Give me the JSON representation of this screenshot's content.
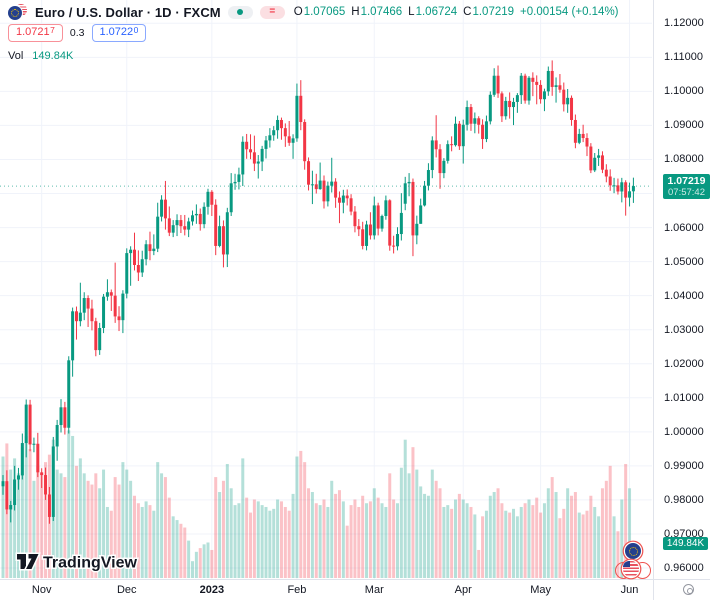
{
  "header": {
    "title": "Euro / U.S. Dollar · 1D · FXCM",
    "ohlc": {
      "o_label": "O",
      "o_value": "1.07065",
      "h_label": "H",
      "h_value": "1.07466",
      "l_label": "L",
      "l_value": "1.06724",
      "c_label": "C",
      "c_value": "1.07219",
      "change": "+0.00154 (+0.14%)"
    },
    "bid": {
      "main": "1.0721",
      "sup": "7"
    },
    "spread": "0.3",
    "ask": {
      "main": "1.0722",
      "sup": "0"
    },
    "vol_label": "Vol",
    "vol_value": "149.84K"
  },
  "icons": {
    "pair": "eu-us-flag-pair",
    "market_status": "green-dot",
    "delayed_badge": "=",
    "corner_button": "target-circle",
    "event_markers": [
      "eu-flag",
      "us-flag"
    ]
  },
  "watermark": {
    "logo_text": "TradingView",
    "logo_mark": "17"
  },
  "price_scale": {
    "ticks": [
      "1.12000",
      "1.11000",
      "1.10000",
      "1.09000",
      "1.08000",
      "1.07000",
      "1.06000",
      "1.05000",
      "1.04000",
      "1.03000",
      "1.02000",
      "1.01000",
      "1.00000",
      "0.99000",
      "0.98000",
      "0.97000",
      "0.96000"
    ]
  },
  "last_price_label": {
    "price": "1.07219",
    "countdown": "07:57:42"
  },
  "last_volume_label": "149.84K",
  "colors": {
    "up": "#089981",
    "down": "#f23645",
    "vol_up": "rgba(8,153,129,0.30)",
    "vol_down": "rgba(242,54,69,0.30)",
    "grid": "#f0f3fa",
    "axis_border": "#e0e3eb",
    "text": "#131722",
    "label_bg": "#089981",
    "bid": "#f23645",
    "ask": "#2962ff"
  },
  "chart_data": {
    "type": "candlestick",
    "title": "Euro / U.S. Dollar",
    "interval": "1D",
    "exchange": "FXCM",
    "current_price": 1.07219,
    "current_volume_k": 149.84,
    "price_axis": {
      "min": 0.96,
      "max": 1.12,
      "step": 0.01
    },
    "time_axis": {
      "month_ticks": [
        {
          "index": 10,
          "label": "Nov"
        },
        {
          "index": 32,
          "label": "Dec"
        },
        {
          "index": 54,
          "label": "2023",
          "year": true
        },
        {
          "index": 76,
          "label": "Feb"
        },
        {
          "index": 96,
          "label": "Mar"
        },
        {
          "index": 119,
          "label": "Apr"
        },
        {
          "index": 139,
          "label": "May"
        },
        {
          "index": 162,
          "label": "Jun"
        }
      ]
    },
    "volume_unit": "K",
    "candles": [
      [
        0.984,
        0.9873,
        0.9815,
        0.9855,
        650
      ],
      [
        0.9855,
        0.9887,
        0.9758,
        0.9772,
        720
      ],
      [
        0.9772,
        0.9797,
        0.9734,
        0.9785,
        580
      ],
      [
        0.9785,
        0.99,
        0.9769,
        0.986,
        640
      ],
      [
        0.986,
        0.9894,
        0.983,
        0.9872,
        560
      ],
      [
        0.9872,
        0.9995,
        0.986,
        0.9967,
        700
      ],
      [
        0.9967,
        1.0095,
        0.9925,
        1.008,
        760
      ],
      [
        1.008,
        1.0094,
        0.9943,
        0.9963,
        690
      ],
      [
        0.9963,
        0.9983,
        0.994,
        0.9965,
        520
      ],
      [
        0.9965,
        0.9997,
        0.9867,
        0.9881,
        600
      ],
      [
        0.9881,
        0.9893,
        0.9835,
        0.9873,
        560
      ],
      [
        0.9873,
        0.9895,
        0.98,
        0.9816,
        620
      ],
      [
        0.9816,
        0.9838,
        0.973,
        0.975,
        660
      ],
      [
        0.975,
        0.9985,
        0.9738,
        0.9957,
        740
      ],
      [
        0.9957,
        1.0035,
        0.9915,
        1.002,
        580
      ],
      [
        1.002,
        1.0096,
        0.9998,
        1.0072,
        560
      ],
      [
        1.0072,
        1.0088,
        0.9992,
        1.0012,
        540
      ],
      [
        1.0012,
        1.0222,
        0.9995,
        1.021,
        790
      ],
      [
        1.021,
        1.0365,
        1.0162,
        1.0354,
        760
      ],
      [
        1.0354,
        1.0368,
        1.0271,
        1.0325,
        600
      ],
      [
        1.0325,
        1.0438,
        1.031,
        1.035,
        640
      ],
      [
        1.035,
        1.041,
        1.0328,
        1.0393,
        560
      ],
      [
        1.0393,
        1.0401,
        1.0308,
        1.0362,
        520
      ],
      [
        1.0362,
        1.0388,
        1.0298,
        1.0325,
        500
      ],
      [
        1.0325,
        1.0335,
        1.0222,
        1.024,
        560
      ],
      [
        1.024,
        1.032,
        1.0226,
        1.0305,
        480
      ],
      [
        1.0305,
        1.0405,
        1.029,
        1.0397,
        580
      ],
      [
        1.0397,
        1.0448,
        1.0385,
        1.041,
        380
      ],
      [
        1.041,
        1.0418,
        1.0355,
        1.04,
        360
      ],
      [
        1.04,
        1.0497,
        1.032,
        1.0339,
        540
      ],
      [
        1.0339,
        1.0369,
        1.0296,
        1.0328,
        500
      ],
      [
        1.0328,
        1.0416,
        1.029,
        1.0406,
        620
      ],
      [
        1.0406,
        1.0539,
        1.0392,
        1.0525,
        580
      ],
      [
        1.0525,
        1.0545,
        1.0429,
        1.0535,
        520
      ],
      [
        1.0535,
        1.0585,
        1.0474,
        1.049,
        440
      ],
      [
        1.049,
        1.0533,
        1.0443,
        1.0468,
        400
      ],
      [
        1.0468,
        1.0532,
        1.0455,
        1.0507,
        380
      ],
      [
        1.0507,
        1.0563,
        1.0489,
        1.0551,
        410
      ],
      [
        1.0551,
        1.0588,
        1.0504,
        1.0531,
        390
      ],
      [
        1.0531,
        1.058,
        1.0519,
        1.0538,
        360
      ],
      [
        1.0538,
        1.0673,
        1.0528,
        1.0632,
        620
      ],
      [
        1.0632,
        1.0695,
        1.0618,
        1.0682,
        560
      ],
      [
        1.0682,
        1.0737,
        1.0594,
        1.0627,
        540
      ],
      [
        1.0627,
        1.0662,
        1.0575,
        1.0585,
        430
      ],
      [
        1.0585,
        1.0622,
        1.0572,
        1.0607,
        330
      ],
      [
        1.0607,
        1.0639,
        1.0575,
        1.0622,
        310
      ],
      [
        1.0622,
        1.0637,
        1.0584,
        1.0604,
        290
      ],
      [
        1.0604,
        1.0637,
        1.0577,
        1.0594,
        270
      ],
      [
        1.0594,
        1.0629,
        1.0572,
        1.0618,
        200
      ],
      [
        1.0618,
        1.065,
        1.0606,
        1.0636,
        90
      ],
      [
        1.0636,
        1.0668,
        1.0611,
        1.064,
        140
      ],
      [
        1.064,
        1.0656,
        1.0591,
        1.061,
        160
      ],
      [
        1.061,
        1.0674,
        1.0598,
        1.0661,
        180
      ],
      [
        1.0661,
        1.0714,
        1.0638,
        1.0705,
        190
      ],
      [
        1.0705,
        1.071,
        1.0634,
        1.0667,
        150
      ],
      [
        1.0667,
        1.0683,
        1.0519,
        1.0546,
        540
      ],
      [
        1.0546,
        1.0635,
        1.0542,
        1.0604,
        460
      ],
      [
        1.0604,
        1.0621,
        1.0483,
        1.0521,
        520
      ],
      [
        1.0521,
        1.0658,
        1.0484,
        1.0645,
        610
      ],
      [
        1.0645,
        1.076,
        1.0634,
        1.073,
        480
      ],
      [
        1.073,
        1.0758,
        1.0711,
        1.0734,
        390
      ],
      [
        1.0734,
        1.0776,
        1.0712,
        1.0756,
        400
      ],
      [
        1.0756,
        1.0868,
        1.0722,
        1.0852,
        640
      ],
      [
        1.0852,
        1.0875,
        1.0802,
        1.083,
        430
      ],
      [
        1.083,
        1.0874,
        1.0801,
        1.0821,
        350
      ],
      [
        1.0821,
        1.087,
        1.0766,
        1.0788,
        420
      ],
      [
        1.0788,
        1.0813,
        1.0744,
        1.0794,
        410
      ],
      [
        1.0794,
        1.084,
        1.0766,
        1.0831,
        390
      ],
      [
        1.0831,
        1.0869,
        1.0803,
        1.0856,
        380
      ],
      [
        1.0856,
        1.0892,
        1.0835,
        1.0871,
        360
      ],
      [
        1.0871,
        1.0898,
        1.0855,
        1.0886,
        370
      ],
      [
        1.0886,
        1.0929,
        1.0861,
        1.0916,
        420
      ],
      [
        1.0916,
        1.0923,
        1.0858,
        1.0892,
        410
      ],
      [
        1.0892,
        1.0906,
        1.0837,
        1.0868,
        380
      ],
      [
        1.0868,
        1.0913,
        1.084,
        1.0849,
        360
      ],
      [
        1.0849,
        1.0874,
        1.0802,
        1.0862,
        450
      ],
      [
        1.0862,
        1.1023,
        1.0852,
        1.0987,
        650
      ],
      [
        1.0987,
        1.1033,
        1.0886,
        1.091,
        680
      ],
      [
        1.091,
        1.0918,
        1.077,
        1.0795,
        620
      ],
      [
        1.0795,
        1.0806,
        1.0709,
        1.0726,
        480
      ],
      [
        1.0726,
        1.0767,
        1.0669,
        1.0727,
        460
      ],
      [
        1.0727,
        1.0758,
        1.07,
        1.0713,
        400
      ],
      [
        1.0713,
        1.0791,
        1.0711,
        1.0738,
        390
      ],
      [
        1.0738,
        1.0753,
        1.0656,
        1.0677,
        420
      ],
      [
        1.0677,
        1.0735,
        1.0662,
        1.0723,
        380
      ],
      [
        1.0723,
        1.0805,
        1.0703,
        1.0735,
        520
      ],
      [
        1.0735,
        1.0745,
        1.0658,
        1.0688,
        450
      ],
      [
        1.0688,
        1.0706,
        1.0613,
        1.0673,
        470
      ],
      [
        1.0673,
        1.0711,
        1.0642,
        1.0694,
        410
      ],
      [
        1.0694,
        1.0712,
        1.0665,
        1.0686,
        280
      ],
      [
        1.0686,
        1.0698,
        1.0636,
        1.0647,
        390
      ],
      [
        1.0647,
        1.0663,
        1.0586,
        1.0604,
        420
      ],
      [
        1.0604,
        1.0625,
        1.0575,
        1.0595,
        380
      ],
      [
        1.0595,
        1.0617,
        1.0536,
        1.0546,
        440
      ],
      [
        1.0546,
        1.062,
        1.0533,
        1.0609,
        400
      ],
      [
        1.0609,
        1.0645,
        1.0565,
        1.0577,
        410
      ],
      [
        1.0577,
        1.0691,
        1.0565,
        1.0665,
        480
      ],
      [
        1.0665,
        1.0673,
        1.0577,
        1.0597,
        430
      ],
      [
        1.0597,
        1.0638,
        1.0588,
        1.0634,
        400
      ],
      [
        1.0634,
        1.0694,
        1.0623,
        1.068,
        380
      ],
      [
        1.068,
        1.0683,
        1.0532,
        1.0547,
        560
      ],
      [
        1.0547,
        1.0576,
        1.0524,
        1.0545,
        420
      ],
      [
        1.0545,
        1.0601,
        1.0533,
        1.0581,
        400
      ],
      [
        1.0581,
        1.0701,
        1.0562,
        1.0643,
        590
      ],
      [
        1.067,
        1.0749,
        1.0651,
        1.073,
        740
      ],
      [
        1.073,
        1.076,
        1.0692,
        1.0734,
        560
      ],
      [
        1.0734,
        1.0744,
        1.0516,
        1.0577,
        700
      ],
      [
        1.0577,
        1.0635,
        1.0551,
        1.0611,
        580
      ],
      [
        1.0611,
        1.0685,
        1.0611,
        1.0665,
        490
      ],
      [
        1.0665,
        1.0737,
        1.0662,
        1.0723,
        450
      ],
      [
        1.0723,
        1.0789,
        1.0709,
        1.0769,
        440
      ],
      [
        1.0769,
        1.0868,
        1.0745,
        1.0856,
        580
      ],
      [
        1.0856,
        1.093,
        1.0806,
        1.083,
        520
      ],
      [
        1.083,
        1.0845,
        1.0714,
        1.076,
        480
      ],
      [
        1.076,
        1.0804,
        1.0745,
        1.0796,
        380
      ],
      [
        1.0796,
        1.0856,
        1.0788,
        1.0845,
        390
      ],
      [
        1.0845,
        1.0868,
        1.0824,
        1.0842,
        370
      ],
      [
        1.0842,
        1.0926,
        1.0838,
        1.0905,
        420
      ],
      [
        1.0905,
        1.0913,
        1.0828,
        1.0839,
        450
      ],
      [
        1.0839,
        1.0917,
        1.0788,
        1.0902,
        420
      ],
      [
        1.0902,
        1.0973,
        1.0885,
        1.0954,
        400
      ],
      [
        1.0954,
        1.0963,
        1.0884,
        1.0905,
        380
      ],
      [
        1.0905,
        1.0938,
        1.0877,
        1.0921,
        340
      ],
      [
        1.0921,
        1.0927,
        1.0876,
        1.0902,
        150
      ],
      [
        1.0902,
        1.0918,
        1.0831,
        1.086,
        330
      ],
      [
        1.086,
        1.0929,
        1.0851,
        1.0912,
        360
      ],
      [
        1.0912,
        1.1,
        1.0903,
        1.099,
        440
      ],
      [
        1.099,
        1.1068,
        1.0984,
        1.1046,
        460
      ],
      [
        1.1046,
        1.1076,
        1.0981,
        1.0994,
        480
      ],
      [
        1.0994,
        1.1,
        1.091,
        1.0927,
        400
      ],
      [
        1.0927,
        1.0984,
        1.0917,
        1.0972,
        360
      ],
      [
        1.0972,
        1.0997,
        1.092,
        1.0954,
        350
      ],
      [
        1.0954,
        1.0981,
        1.0901,
        1.0969,
        370
      ],
      [
        1.0969,
        1.0995,
        1.0937,
        1.0989,
        330
      ],
      [
        1.0989,
        1.1054,
        1.0963,
        1.1046,
        380
      ],
      [
        1.1046,
        1.1052,
        1.0964,
        1.0973,
        400
      ],
      [
        1.0973,
        1.1045,
        1.0961,
        1.104,
        420
      ],
      [
        1.104,
        1.1056,
        1.0986,
        1.1028,
        390
      ],
      [
        1.1028,
        1.1047,
        1.0962,
        1.1019,
        430
      ],
      [
        1.1019,
        1.1033,
        1.0964,
        1.0977,
        350
      ],
      [
        1.0977,
        1.1008,
        1.0942,
        1.1,
        400
      ],
      [
        1.1,
        1.1073,
        1.0987,
        1.106,
        480
      ],
      [
        1.106,
        1.1091,
        1.0987,
        1.1013,
        540
      ],
      [
        1.1013,
        1.1041,
        1.0967,
        1.1018,
        460
      ],
      [
        1.1018,
        1.1051,
        1.0996,
        1.1005,
        320
      ],
      [
        1.1005,
        1.1026,
        1.0941,
        1.0962,
        370
      ],
      [
        1.0962,
        1.1007,
        1.0937,
        1.0981,
        480
      ],
      [
        1.0981,
        1.0988,
        1.0899,
        1.0916,
        440
      ],
      [
        1.0916,
        1.0932,
        1.0833,
        1.0849,
        460
      ],
      [
        1.0849,
        1.089,
        1.0845,
        1.0875,
        350
      ],
      [
        1.0875,
        1.0902,
        1.0851,
        1.0863,
        340
      ],
      [
        1.0863,
        1.0877,
        1.081,
        1.0838,
        360
      ],
      [
        1.0838,
        1.0848,
        1.076,
        1.0768,
        440
      ],
      [
        1.0768,
        1.0819,
        1.0763,
        1.0805,
        380
      ],
      [
        1.0805,
        1.0831,
        1.0781,
        1.0812,
        330
      ],
      [
        1.0812,
        1.0824,
        1.076,
        1.077,
        480
      ],
      [
        1.077,
        1.0786,
        1.0733,
        1.075,
        520
      ],
      [
        1.075,
        1.0771,
        1.0708,
        1.0724,
        600
      ],
      [
        1.0724,
        1.0746,
        1.0701,
        1.0724,
        330
      ],
      [
        1.0724,
        1.0744,
        1.0697,
        1.0706,
        250
      ],
      [
        1.0706,
        1.0746,
        1.0674,
        1.0733,
        420
      ],
      [
        1.0733,
        1.0739,
        1.0635,
        1.0688,
        610
      ],
      [
        1.0688,
        1.0732,
        1.0662,
        1.07065,
        480
      ],
      [
        1.07065,
        1.07466,
        1.06724,
        1.07219,
        149.84
      ]
    ]
  }
}
